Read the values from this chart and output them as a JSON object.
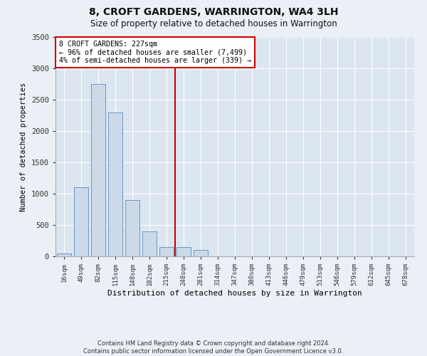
{
  "title": "8, CROFT GARDENS, WARRINGTON, WA4 3LH",
  "subtitle": "Size of property relative to detached houses in Warrington",
  "xlabel": "Distribution of detached houses by size in Warrington",
  "ylabel": "Number of detached properties",
  "bar_color": "#ccd9e8",
  "bar_edge_color": "#6699cc",
  "background_color": "#eaf0f6",
  "plot_bg_color": "#dce6f0",
  "grid_color": "#ffffff",
  "annotation_box_color": "#cc0000",
  "vline_color": "#cc0000",
  "categories": [
    "16sqm",
    "49sqm",
    "82sqm",
    "115sqm",
    "148sqm",
    "182sqm",
    "215sqm",
    "248sqm",
    "281sqm",
    "314sqm",
    "347sqm",
    "380sqm",
    "413sqm",
    "446sqm",
    "479sqm",
    "513sqm",
    "546sqm",
    "579sqm",
    "612sqm",
    "645sqm",
    "678sqm"
  ],
  "values": [
    50,
    1100,
    2750,
    2300,
    900,
    400,
    150,
    150,
    100,
    0,
    0,
    0,
    0,
    0,
    0,
    0,
    0,
    0,
    0,
    0,
    0
  ],
  "ylim": [
    0,
    3500
  ],
  "yticks": [
    0,
    500,
    1000,
    1500,
    2000,
    2500,
    3000,
    3500
  ],
  "property_bin_index": 6,
  "vline_x_offset": 0.5,
  "annotation_text": "8 CROFT GARDENS: 227sqm\n← 96% of detached houses are smaller (7,499)\n4% of semi-detached houses are larger (339) →",
  "footer_line1": "Contains HM Land Registry data © Crown copyright and database right 2024.",
  "footer_line2": "Contains public sector information licensed under the Open Government Licence v3.0."
}
